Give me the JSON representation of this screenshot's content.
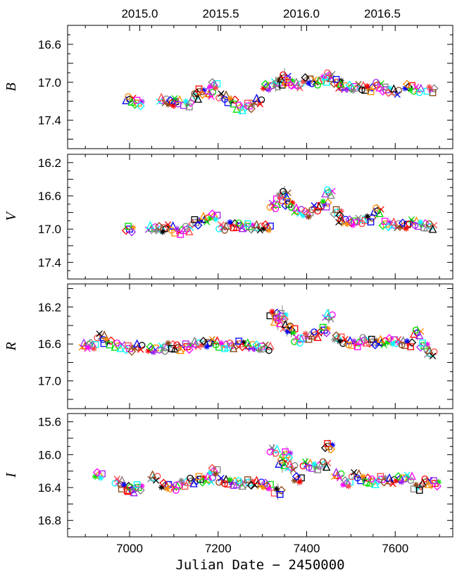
{
  "chart_data": {
    "type": "scatter",
    "title": "",
    "xlabel": "Julian Date − 2450000",
    "xlim": [
      6860,
      7730
    ],
    "xticks": [
      7000,
      7200,
      7400,
      7600
    ],
    "top_axis": {
      "labels": [
        "2015.0",
        "2015.5",
        "2016.0",
        "2016.5"
      ],
      "x": [
        7023,
        7206,
        7388,
        7571
      ]
    },
    "marker_colors": [
      "#000000",
      "#0000ff",
      "#ff0000",
      "#ff8c00",
      "#00dd00",
      "#a020f0",
      "#ff00ff",
      "#00ffff",
      "#808080",
      "#ff4444",
      "#8b4513"
    ],
    "panels": [
      {
        "ylabel": "B",
        "ylim": [
          17.7,
          16.4
        ],
        "yticks": [
          16.6,
          17.0,
          17.4
        ],
        "tick_labels": [
          "16.6",
          "17.0",
          "17.4"
        ],
        "x": [
          7000,
          7020,
          7075,
          7095,
          7105,
          7130,
          7150,
          7160,
          7180,
          7190,
          7210,
          7230,
          7250,
          7270,
          7290,
          7310,
          7330,
          7340,
          7350,
          7360,
          7380,
          7400,
          7420,
          7440,
          7450,
          7470,
          7480,
          7500,
          7520,
          7540,
          7560,
          7580,
          7600,
          7630,
          7650,
          7680
        ],
        "y": [
          17.18,
          17.22,
          17.19,
          17.22,
          17.2,
          17.23,
          17.15,
          17.1,
          17.12,
          17.03,
          17.15,
          17.2,
          17.27,
          17.25,
          17.2,
          17.05,
          17.02,
          17.0,
          16.95,
          17.0,
          17.03,
          16.98,
          17.0,
          16.97,
          16.93,
          17.0,
          17.05,
          17.06,
          17.05,
          17.07,
          17.03,
          17.08,
          17.1,
          17.05,
          17.08,
          17.08
        ],
        "err": [
          0.04,
          0.04,
          0.04,
          0.04,
          0.05,
          0.05,
          0.05,
          0.05,
          0.05,
          0.06,
          0.05,
          0.06,
          0.07,
          0.06,
          0.06,
          0.05,
          0.08,
          0.09,
          0.1,
          0.07,
          0.05,
          0.05,
          0.05,
          0.05,
          0.05,
          0.04,
          0.04,
          0.05,
          0.04,
          0.05,
          0.05,
          0.04,
          0.04,
          0.04,
          0.04,
          0.03
        ]
      },
      {
        "ylabel": "V",
        "ylim": [
          17.6,
          16.1
        ],
        "yticks": [
          16.2,
          16.6,
          17.0,
          17.4
        ],
        "tick_labels": [
          "16.2",
          "16.6",
          "17.0",
          "17.4"
        ],
        "x": [
          7000,
          7050,
          7070,
          7090,
          7110,
          7130,
          7150,
          7170,
          7190,
          7210,
          7230,
          7250,
          7270,
          7290,
          7310,
          7325,
          7340,
          7350,
          7360,
          7380,
          7400,
          7420,
          7440,
          7450,
          7470,
          7480,
          7500,
          7520,
          7540,
          7560,
          7580,
          7600,
          7620,
          7640,
          7660,
          7680
        ],
        "y": [
          17.0,
          16.99,
          17.0,
          16.98,
          17.03,
          17.0,
          16.92,
          16.88,
          16.85,
          16.98,
          16.95,
          16.96,
          16.97,
          16.98,
          16.98,
          16.72,
          16.62,
          16.58,
          16.7,
          16.78,
          16.82,
          16.75,
          16.7,
          16.56,
          16.8,
          16.9,
          16.92,
          16.9,
          16.88,
          16.78,
          16.94,
          16.95,
          16.96,
          16.92,
          16.95,
          16.97
        ],
        "err": [
          0.03,
          0.03,
          0.03,
          0.04,
          0.06,
          0.05,
          0.05,
          0.05,
          0.05,
          0.05,
          0.05,
          0.05,
          0.05,
          0.05,
          0.06,
          0.08,
          0.1,
          0.1,
          0.08,
          0.06,
          0.06,
          0.05,
          0.05,
          0.05,
          0.06,
          0.05,
          0.05,
          0.05,
          0.05,
          0.08,
          0.05,
          0.05,
          0.05,
          0.04,
          0.04,
          0.03
        ]
      },
      {
        "ylabel": "R",
        "ylim": [
          17.3,
          15.95
        ],
        "yticks": [
          16.2,
          16.6,
          17.0
        ],
        "tick_labels": [
          "16.2",
          "16.6",
          "17.0"
        ],
        "x": [
          6900,
          6915,
          6935,
          6950,
          6975,
          7000,
          7020,
          7050,
          7075,
          7090,
          7110,
          7130,
          7150,
          7170,
          7190,
          7210,
          7230,
          7250,
          7270,
          7290,
          7310,
          7325,
          7335,
          7345,
          7355,
          7365,
          7380,
          7400,
          7420,
          7440,
          7450,
          7470,
          7490,
          7510,
          7530,
          7550,
          7570,
          7590,
          7610,
          7630,
          7650,
          7665,
          7680
        ],
        "y": [
          16.62,
          16.62,
          16.52,
          16.58,
          16.62,
          16.65,
          16.63,
          16.66,
          16.65,
          16.62,
          16.64,
          16.63,
          16.6,
          16.6,
          16.58,
          16.62,
          16.62,
          16.6,
          16.62,
          16.64,
          16.64,
          16.28,
          16.35,
          16.3,
          16.42,
          16.45,
          16.56,
          16.52,
          16.5,
          16.45,
          16.3,
          16.54,
          16.58,
          16.6,
          16.56,
          16.58,
          16.58,
          16.57,
          16.58,
          16.6,
          16.48,
          16.62,
          16.7
        ],
        "err": [
          0.03,
          0.03,
          0.04,
          0.04,
          0.04,
          0.05,
          0.05,
          0.05,
          0.05,
          0.05,
          0.05,
          0.05,
          0.06,
          0.05,
          0.06,
          0.05,
          0.05,
          0.05,
          0.05,
          0.05,
          0.05,
          0.06,
          0.1,
          0.12,
          0.1,
          0.08,
          0.06,
          0.06,
          0.06,
          0.06,
          0.08,
          0.06,
          0.05,
          0.05,
          0.05,
          0.06,
          0.05,
          0.05,
          0.05,
          0.05,
          0.08,
          0.05,
          0.06
        ]
      },
      {
        "ylabel": "I",
        "ylim": [
          17.0,
          15.5
        ],
        "yticks": [
          15.6,
          16.0,
          16.4,
          16.8
        ],
        "tick_labels": [
          "15.6",
          "16.0",
          "16.4",
          "16.8"
        ],
        "x": [
          6930,
          6975,
          6990,
          7005,
          7020,
          7055,
          7080,
          7100,
          7120,
          7140,
          7160,
          7180,
          7190,
          7210,
          7230,
          7250,
          7270,
          7290,
          7310,
          7325,
          7335,
          7345,
          7355,
          7365,
          7380,
          7400,
          7420,
          7440,
          7450,
          7470,
          7490,
          7510,
          7530,
          7550,
          7570,
          7590,
          7610,
          7630,
          7650,
          7670,
          7690
        ],
        "y": [
          16.25,
          16.33,
          16.4,
          16.43,
          16.4,
          16.28,
          16.38,
          16.4,
          16.35,
          16.32,
          16.3,
          16.3,
          16.2,
          16.32,
          16.34,
          16.35,
          16.34,
          16.35,
          16.38,
          15.95,
          16.45,
          16.1,
          16.0,
          16.15,
          16.3,
          16.12,
          16.15,
          16.12,
          15.9,
          16.25,
          16.35,
          16.25,
          16.3,
          16.33,
          16.3,
          16.32,
          16.3,
          16.28,
          16.4,
          16.33,
          16.35
        ],
        "err": [
          0.04,
          0.04,
          0.05,
          0.06,
          0.05,
          0.06,
          0.05,
          0.05,
          0.05,
          0.05,
          0.05,
          0.05,
          0.06,
          0.06,
          0.06,
          0.06,
          0.06,
          0.06,
          0.06,
          0.08,
          0.1,
          0.12,
          0.1,
          0.1,
          0.08,
          0.08,
          0.07,
          0.07,
          0.08,
          0.06,
          0.06,
          0.05,
          0.05,
          0.05,
          0.05,
          0.05,
          0.05,
          0.05,
          0.06,
          0.05,
          0.04
        ]
      }
    ]
  }
}
